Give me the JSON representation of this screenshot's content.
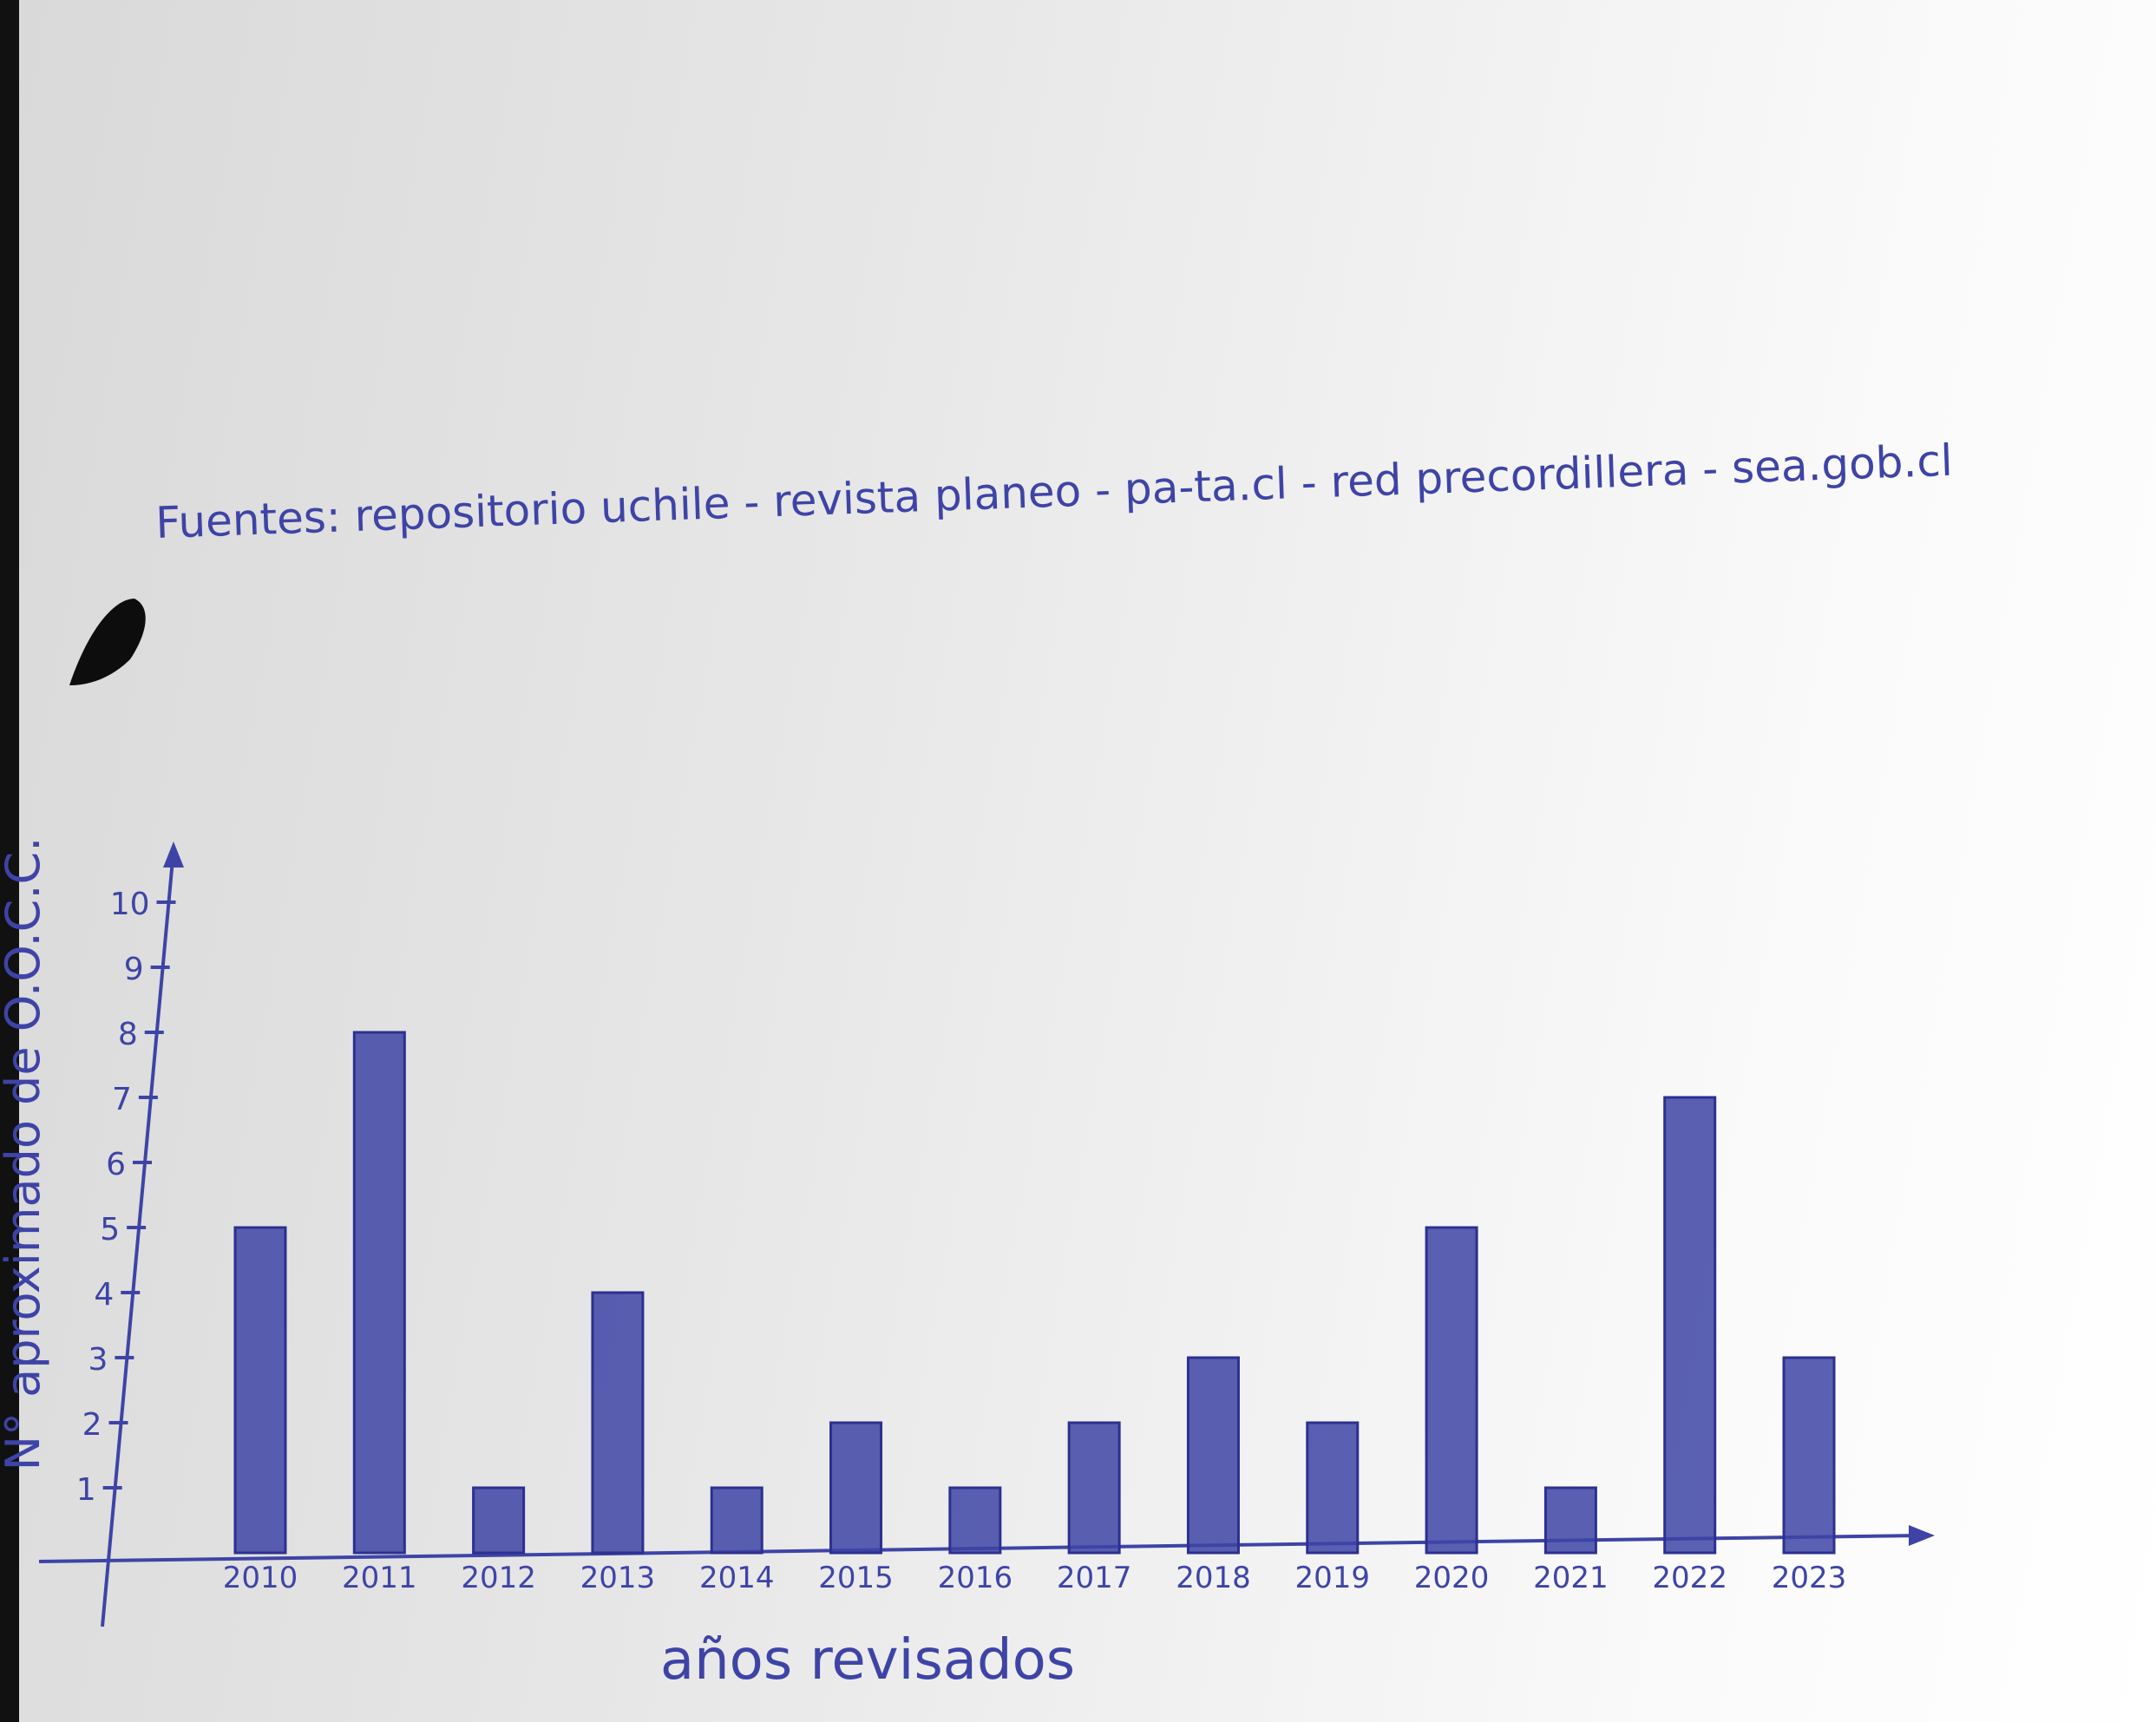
{
  "chart_data": {
    "type": "bar",
    "title": "",
    "sources_note": "Fuentes: repositorio uchile - revista planeo - pa-ta.cl - red precordillera - sea.gob.cl",
    "xlabel": "años revisados",
    "ylabel": "N° aproximado de O.O.C.C.",
    "ylim": [
      0,
      10
    ],
    "yticks": [
      1,
      2,
      3,
      4,
      5,
      6,
      7,
      8,
      9,
      10
    ],
    "categories": [
      "2010",
      "2011",
      "2012",
      "2013",
      "2014",
      "2015",
      "2016",
      "2017",
      "2018",
      "2019",
      "2020",
      "2021",
      "2022",
      "2023"
    ],
    "values": [
      5,
      8,
      1,
      4,
      1,
      2,
      1,
      2,
      3,
      2,
      5,
      1,
      7,
      3
    ],
    "grid": false,
    "bar_color": "#3e44a6"
  }
}
